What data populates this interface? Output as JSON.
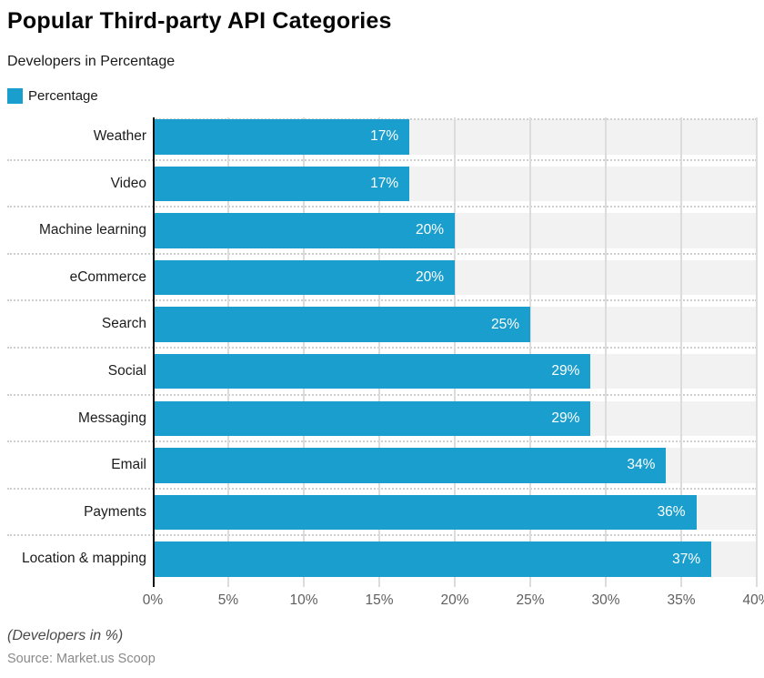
{
  "header": {
    "title": "Popular Third-party API Categories",
    "subtitle": "Developers in Percentage"
  },
  "legend": {
    "label": "Percentage",
    "swatch_color": "#1A9ECD"
  },
  "chart_data": {
    "type": "bar",
    "orientation": "horizontal",
    "title": "Popular Third-party API Categories",
    "subtitle": "Developers in Percentage",
    "series_name": "Percentage",
    "categories": [
      "Weather",
      "Video",
      "Machine learning",
      "eCommerce",
      "Search",
      "Social",
      "Messaging",
      "Email",
      "Payments",
      "Location & mapping"
    ],
    "values": [
      17,
      17,
      20,
      20,
      25,
      29,
      29,
      34,
      36,
      37
    ],
    "value_labels": [
      "17%",
      "17%",
      "20%",
      "20%",
      "25%",
      "29%",
      "29%",
      "34%",
      "36%",
      "37%"
    ],
    "xlim": [
      0,
      40
    ],
    "x_ticks": [
      "0%",
      "5%",
      "10%",
      "15%",
      "20%",
      "25%",
      "30%",
      "35%",
      "40%"
    ],
    "grid": true,
    "legend_position": "top-left",
    "bar_color": "#1A9ECD",
    "track_color": "#f2f2f2",
    "xlabel": "",
    "ylabel": ""
  },
  "footer": {
    "note": "(Developers in %)",
    "source": "Source: Market.us Scoop"
  }
}
